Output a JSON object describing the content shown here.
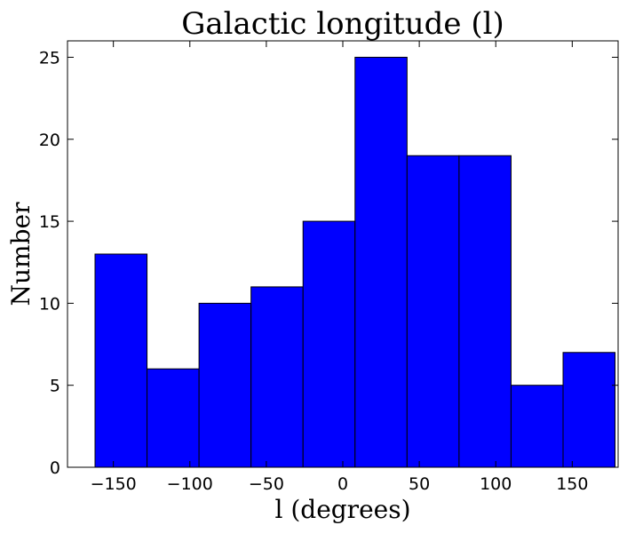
{
  "chart_data": {
    "type": "bar",
    "title": "Galactic longitude (l)",
    "xlabel": "l (degrees)",
    "ylabel": "Number",
    "xlim": [
      -180,
      180
    ],
    "ylim": [
      0,
      26
    ],
    "grid": false,
    "bar_color": "#0000ff",
    "bins": [
      {
        "x0": -162,
        "x1": -128,
        "value": 13
      },
      {
        "x0": -128,
        "x1": -94,
        "value": 6
      },
      {
        "x0": -94,
        "x1": -60,
        "value": 10
      },
      {
        "x0": -60,
        "x1": -26,
        "value": 11
      },
      {
        "x0": -26,
        "x1": 8,
        "value": 15
      },
      {
        "x0": 8,
        "x1": 42,
        "value": 25
      },
      {
        "x0": 42,
        "x1": 76,
        "value": 19
      },
      {
        "x0": 76,
        "x1": 110,
        "value": 19
      },
      {
        "x0": 110,
        "x1": 144,
        "value": 5
      },
      {
        "x0": 144,
        "x1": 178,
        "value": 7
      }
    ],
    "xticks": [
      -150,
      -100,
      -50,
      0,
      50,
      100,
      150
    ],
    "xtick_labels": [
      "−150",
      "−100",
      "−50",
      "0",
      "50",
      "100",
      "150"
    ],
    "yticks": [
      0,
      5,
      10,
      15,
      20,
      25
    ],
    "ytick_labels": [
      "0",
      "5",
      "10",
      "15",
      "20",
      "25"
    ]
  }
}
